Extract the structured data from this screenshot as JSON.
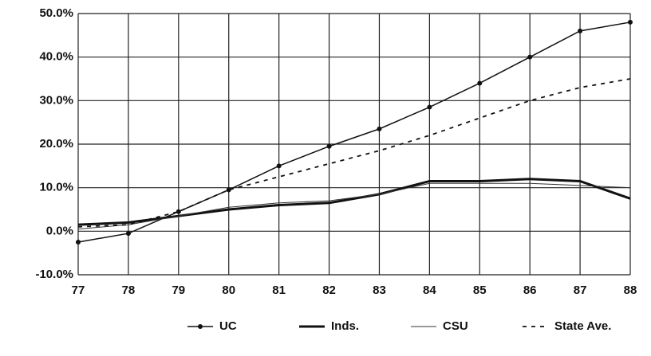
{
  "chart_data": {
    "type": "line",
    "categories": [
      "77",
      "78",
      "79",
      "80",
      "81",
      "82",
      "83",
      "84",
      "85",
      "86",
      "87",
      "88"
    ],
    "series": [
      {
        "name": "UC",
        "color": "#111111",
        "values": [
          -2.5,
          -0.5,
          4.5,
          9.5,
          15,
          19.5,
          23.5,
          28.5,
          34,
          40,
          46,
          48
        ]
      },
      {
        "name": "Inds.",
        "color": "#111111",
        "values": [
          1.5,
          2,
          3.5,
          5,
          6,
          6.5,
          8.5,
          11.5,
          11.5,
          12,
          11.5,
          7.5
        ]
      },
      {
        "name": "CSU",
        "color": "#333333",
        "values": [
          0.5,
          1.5,
          3.5,
          5.5,
          6.5,
          7,
          8.5,
          11,
          11,
          11,
          10.5,
          10
        ]
      },
      {
        "name": "State Ave.",
        "color": "#111111",
        "values": [
          1,
          1.5,
          4.5,
          9.5,
          12.5,
          15.5,
          18.5,
          22,
          26,
          30,
          33,
          35
        ]
      }
    ],
    "ylim": [
      -10,
      50
    ],
    "yticks": [
      {
        "value": -10,
        "label": "-10.0%"
      },
      {
        "value": 0,
        "label": "0.0%"
      },
      {
        "value": 10,
        "label": "10.0%"
      },
      {
        "value": 20,
        "label": "20.0%"
      },
      {
        "value": 30,
        "label": "30.0%"
      },
      {
        "value": 40,
        "label": "40.0%"
      },
      {
        "value": 50,
        "label": "50.0%"
      }
    ],
    "grid": true
  }
}
